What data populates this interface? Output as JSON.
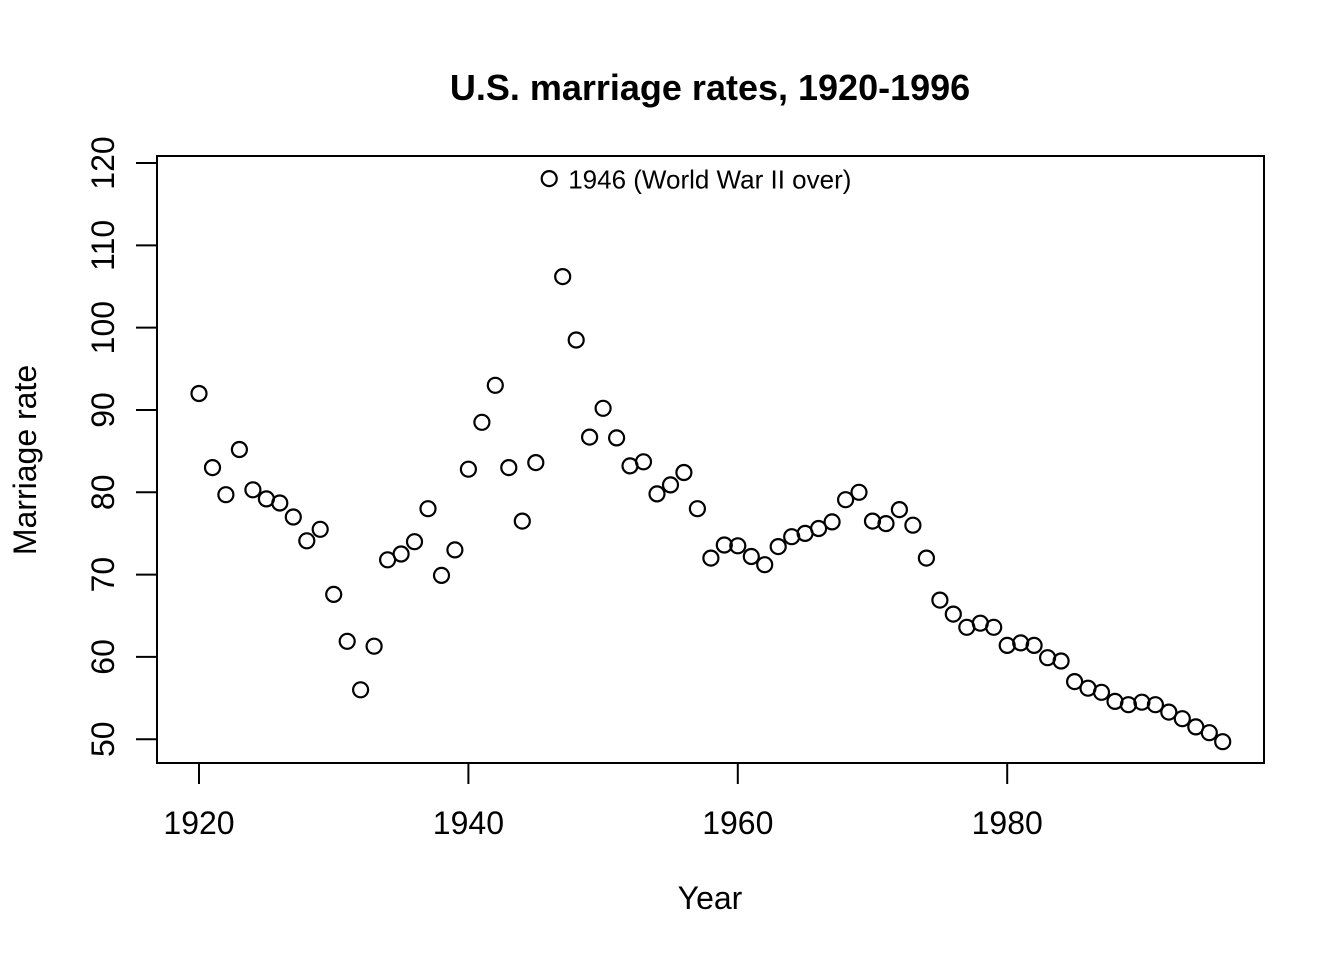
{
  "colors": {
    "foreground": "#000000",
    "background": "#ffffff"
  },
  "chart_data": {
    "type": "scatter",
    "title": "U.S. marriage rates, 1920-1996",
    "xlabel": "Year",
    "ylabel": "Marriage rate",
    "point_style": "open-circle",
    "grid": false,
    "x_ticks": [
      1920,
      1940,
      1960,
      1980
    ],
    "y_ticks": [
      50,
      60,
      70,
      80,
      90,
      100,
      110,
      120
    ],
    "xlim": [
      1916.9,
      1999.1
    ],
    "ylim": [
      47.2,
      121.0
    ],
    "annotation": {
      "year": 1946,
      "value": 118.1,
      "label": "1946 (World War II over)"
    },
    "x": [
      1920,
      1921,
      1922,
      1923,
      1924,
      1925,
      1926,
      1927,
      1928,
      1929,
      1930,
      1931,
      1932,
      1933,
      1934,
      1935,
      1936,
      1937,
      1938,
      1939,
      1940,
      1941,
      1942,
      1943,
      1944,
      1945,
      1946,
      1947,
      1948,
      1949,
      1950,
      1951,
      1952,
      1953,
      1954,
      1955,
      1956,
      1957,
      1958,
      1959,
      1960,
      1961,
      1962,
      1963,
      1964,
      1965,
      1966,
      1967,
      1968,
      1969,
      1970,
      1971,
      1972,
      1973,
      1974,
      1975,
      1976,
      1977,
      1978,
      1979,
      1980,
      1981,
      1982,
      1983,
      1984,
      1985,
      1986,
      1987,
      1988,
      1989,
      1990,
      1991,
      1992,
      1993,
      1994,
      1995,
      1996
    ],
    "values": [
      92.0,
      83.0,
      79.7,
      85.2,
      80.3,
      79.2,
      78.7,
      77.0,
      74.1,
      75.5,
      67.6,
      61.9,
      56.0,
      61.3,
      71.8,
      72.5,
      74.0,
      78.0,
      69.9,
      73.0,
      82.8,
      88.5,
      93.0,
      83.0,
      76.5,
      83.6,
      118.1,
      106.2,
      98.5,
      86.7,
      90.2,
      86.6,
      83.2,
      83.7,
      79.8,
      80.9,
      82.4,
      78.0,
      72.0,
      73.6,
      73.5,
      72.2,
      71.2,
      73.4,
      74.6,
      75.0,
      75.6,
      76.4,
      79.1,
      80.0,
      76.5,
      76.2,
      77.9,
      76.0,
      72.0,
      66.9,
      65.2,
      63.6,
      64.1,
      63.6,
      61.4,
      61.7,
      61.4,
      59.9,
      59.5,
      57.0,
      56.2,
      55.7,
      54.6,
      54.2,
      54.5,
      54.2,
      53.3,
      52.5,
      51.5,
      50.8,
      49.7
    ]
  }
}
